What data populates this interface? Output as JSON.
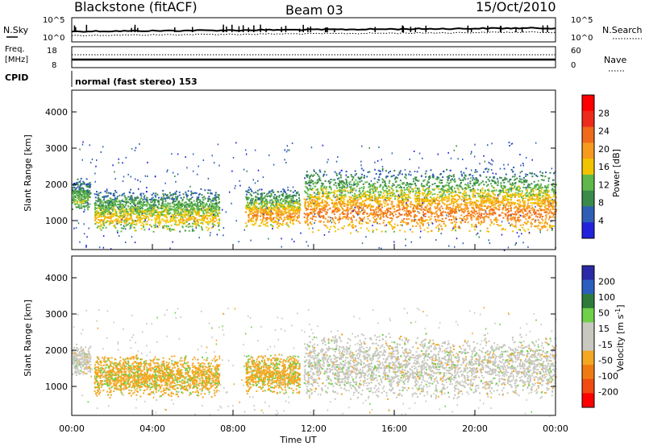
{
  "header": {
    "station": "Blackstone (fitACF)",
    "beam": "Beam 03",
    "date": "15/Oct/2010"
  },
  "summary_panels": {
    "nsky_label": "N.Sky",
    "nsearch_label": "N.Search",
    "nsky_ticks": [
      "10^5",
      "10^0"
    ],
    "nsearch_ticks": [
      "10^5",
      "10^0"
    ],
    "freq_label_top": "Freq.",
    "freq_label_unit": "[MHz]",
    "freq_ticks": [
      "18",
      "8"
    ],
    "nave_label": "Nave",
    "nave_ticks": [
      "60",
      "0"
    ],
    "cpid_label": "CPID",
    "cpid_text": "normal (fast stereo) 153"
  },
  "colors": {
    "power": [
      "#2222dd",
      "#2f5fb5",
      "#3a8a4a",
      "#5fb84a",
      "#f2c400",
      "#f79a1e",
      "#f06a1a",
      "#ee2a1a",
      "#ff0000"
    ],
    "velocity": [
      "#2a2aa6",
      "#2a5fbf",
      "#2d7a3a",
      "#6fd04a",
      "#c8c8c0",
      "#c8c8c0",
      "#f4a722",
      "#f07a12",
      "#f04a12",
      "#ff0000"
    ]
  },
  "chart_data": [
    {
      "type": "heatmap",
      "name": "power",
      "ylabel": "Slant Range [km]",
      "yticks": [
        1000,
        2000,
        3000,
        4000
      ],
      "ylim": [
        200,
        4600
      ],
      "xlim": [
        0,
        24
      ],
      "colorbar_label": "Power [dB]",
      "colorbar_ticks": [
        4,
        8,
        12,
        16,
        20,
        24,
        28
      ],
      "colorbar_range": [
        0,
        32
      ],
      "scatter_regions": [
        {
          "t0": 0.0,
          "t1": 0.9,
          "r0": 1300,
          "r1": 2200,
          "power": 10
        },
        {
          "t0": 1.1,
          "t1": 7.3,
          "r0": 700,
          "r1": 1900,
          "power": 14
        },
        {
          "t0": 8.6,
          "t1": 11.3,
          "r0": 800,
          "r1": 1950,
          "power": 18
        },
        {
          "t0": 11.5,
          "t1": 24.0,
          "r0": 650,
          "r1": 2500,
          "power": 20
        }
      ]
    },
    {
      "type": "heatmap",
      "name": "velocity",
      "xlabel": "Time UT",
      "ylabel": "Slant Range [km]",
      "xticks": [
        "00:00",
        "04:00",
        "08:00",
        "12:00",
        "16:00",
        "20:00",
        "00:00"
      ],
      "yticks": [
        1000,
        2000,
        3000,
        4000
      ],
      "ylim": [
        200,
        4600
      ],
      "xlim": [
        0,
        24
      ],
      "colorbar_label": "Velocity [m s-1]",
      "colorbar_ticks": [
        200,
        100,
        50,
        15,
        -15,
        -50,
        -100,
        -200
      ],
      "scatter_regions": [
        {
          "t0": 0.0,
          "t1": 0.9,
          "r0": 1300,
          "r1": 2200,
          "velocity": 0
        },
        {
          "t0": 1.1,
          "t1": 7.3,
          "r0": 700,
          "r1": 1900,
          "velocity": -60
        },
        {
          "t0": 8.6,
          "t1": 11.3,
          "r0": 800,
          "r1": 1950,
          "velocity": -40
        },
        {
          "t0": 11.5,
          "t1": 24.0,
          "r0": 650,
          "r1": 2500,
          "velocity": 0
        }
      ]
    }
  ]
}
